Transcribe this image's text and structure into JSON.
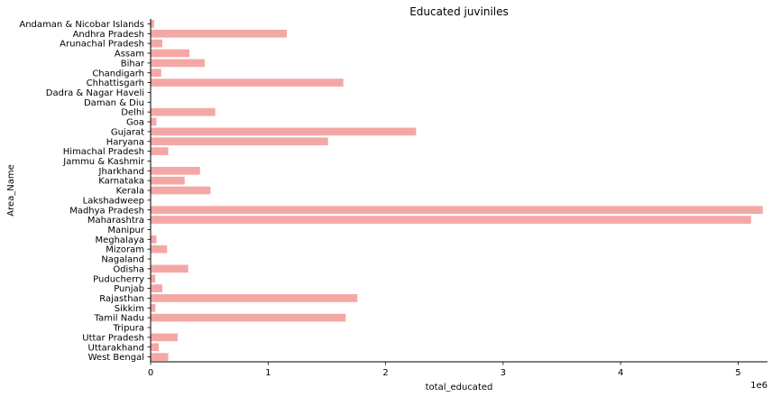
{
  "chart_data": {
    "type": "bar",
    "orientation": "horizontal",
    "title": "Educated juviniles",
    "xlabel": "total_educated",
    "ylabel": "Area_Name",
    "offset_text": "1e6",
    "x_tick_values": [
      0,
      1000000,
      2000000,
      3000000,
      4000000,
      5000000
    ],
    "x_tick_labels": [
      "0",
      "1",
      "2",
      "3",
      "4",
      "5"
    ],
    "xlim": [
      0,
      5250000
    ],
    "grid": false,
    "bar_color": "#f4a8a5",
    "categories": [
      "Andaman & Nicobar Islands",
      "Andhra Pradesh",
      "Arunachal Pradesh",
      "Assam",
      "Bihar",
      "Chandigarh",
      "Chhattisgarh",
      "Dadra & Nagar Haveli",
      "Daman & Diu",
      "Delhi",
      "Goa",
      "Gujarat",
      "Haryana",
      "Himachal Pradesh",
      "Jammu & Kashmir",
      "Jharkhand",
      "Karnataka",
      "Kerala",
      "Lakshadweep",
      "Madhya Pradesh",
      "Maharashtra",
      "Manipur",
      "Meghalaya",
      "Mizoram",
      "Nagaland",
      "Odisha",
      "Puducherry",
      "Punjab",
      "Rajasthan",
      "Sikkim",
      "Tamil Nadu",
      "Tripura",
      "Uttar Pradesh",
      "Uttarakhand",
      "West Bengal"
    ],
    "values": [
      30000,
      1160000,
      100000,
      330000,
      460000,
      90000,
      1640000,
      0,
      0,
      550000,
      50000,
      2260000,
      1510000,
      150000,
      0,
      420000,
      290000,
      510000,
      0,
      5210000,
      5110000,
      0,
      50000,
      140000,
      0,
      320000,
      40000,
      100000,
      1760000,
      40000,
      1660000,
      0,
      230000,
      70000,
      150000
    ]
  }
}
